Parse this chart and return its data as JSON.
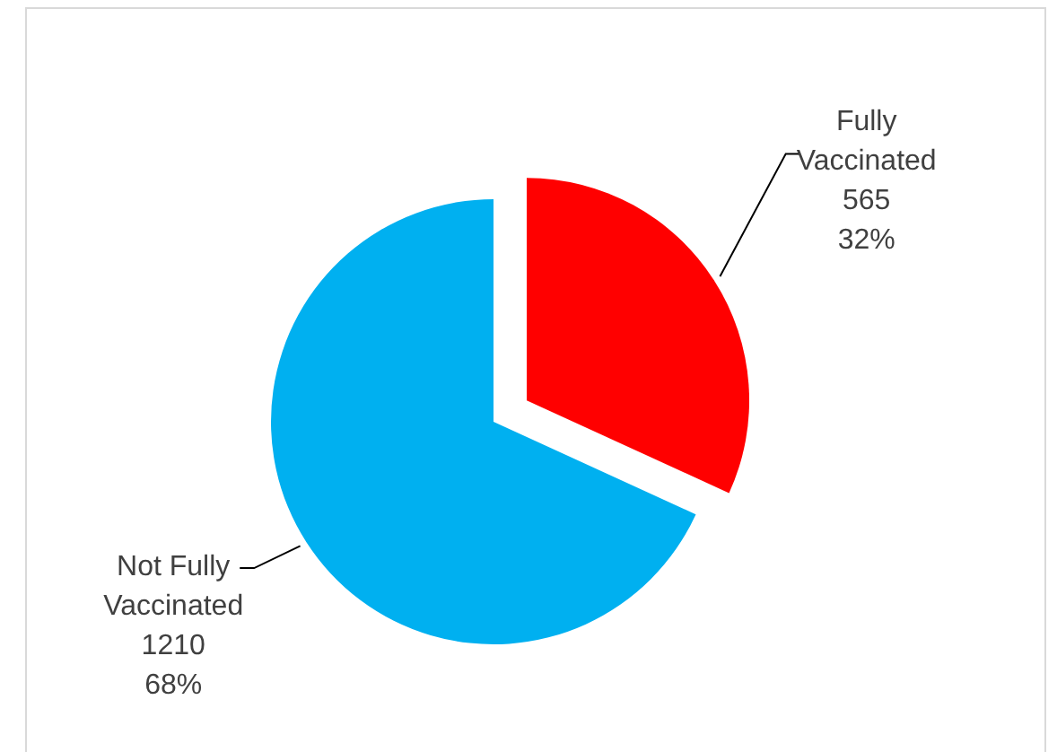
{
  "chart_data": {
    "type": "pie",
    "categories": [
      "Fully Vaccinated",
      "Not Fully Vaccinated"
    ],
    "values": [
      565,
      1210
    ],
    "colors": [
      "#ff0000",
      "#00b0f0"
    ],
    "value_labels": [
      "565\n32%",
      "1210\n68%"
    ]
  }
}
